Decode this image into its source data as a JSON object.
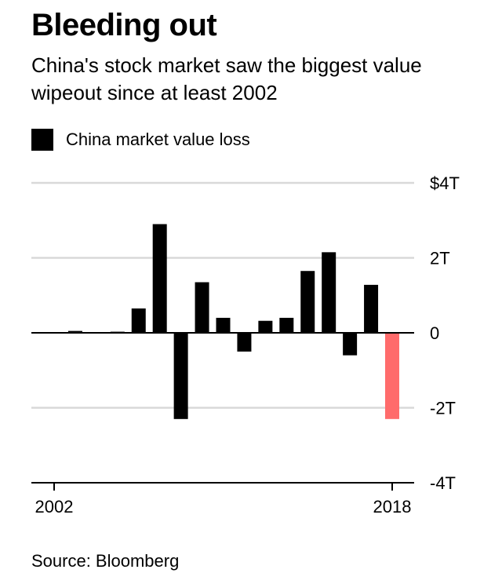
{
  "header": {
    "title": "Bleeding out",
    "subtitle": "China's stock market saw the biggest value wipeout since at least 2002"
  },
  "footer": {
    "source": "Source: Bloomberg"
  },
  "chart_data": {
    "type": "bar",
    "title": "Bleeding out",
    "subtitle": "China's stock market saw the biggest value wipeout since at least 2002",
    "x": [
      2002,
      2003,
      2004,
      2005,
      2006,
      2007,
      2008,
      2009,
      2010,
      2011,
      2012,
      2013,
      2014,
      2015,
      2016,
      2017,
      2018
    ],
    "x_tick_labels": [
      "2002",
      "2018"
    ],
    "series": [
      {
        "name": "China market value loss",
        "values": [
          0.02,
          0.05,
          0.02,
          0.03,
          0.65,
          2.9,
          -2.3,
          1.35,
          0.4,
          -0.5,
          0.32,
          0.4,
          1.65,
          2.15,
          -0.6,
          1.28,
          -2.3
        ],
        "color": "#000000"
      }
    ],
    "highlight": {
      "index": 16,
      "color": "#ff6b6b"
    },
    "ylim": [
      -4,
      4
    ],
    "y_ticks": [
      4,
      2,
      0,
      -2,
      -4
    ],
    "y_tick_labels": [
      "$4T",
      "2T",
      "0",
      "-2T",
      "-4T"
    ],
    "grid": true,
    "legend": "top-left",
    "colors": {
      "bar": "#000000",
      "highlight": "#ff6b6b",
      "grid": "#d9d9d9",
      "axis": "#000000"
    }
  }
}
